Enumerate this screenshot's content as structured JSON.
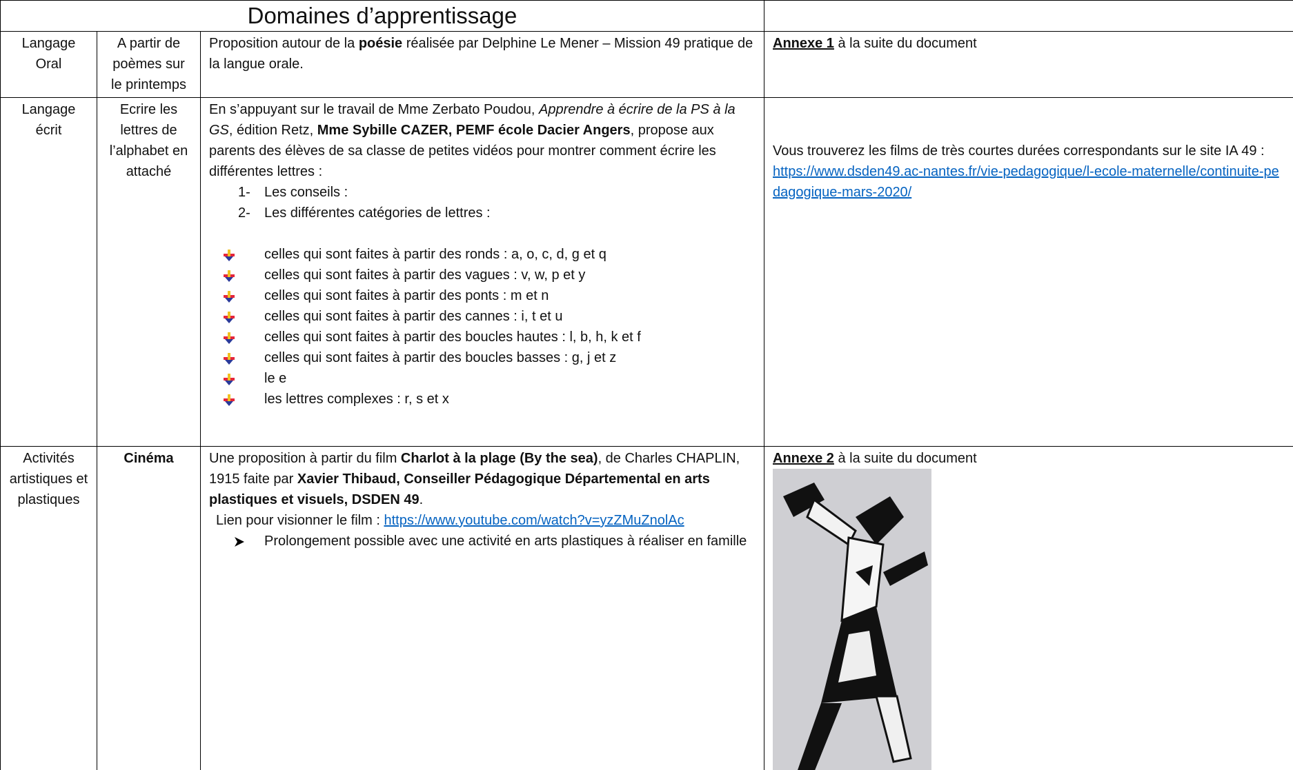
{
  "header": {
    "title": "Domaines d’apprentissage"
  },
  "rows": [
    {
      "domain": "Langage Oral",
      "activity": "A partir de poèmes sur le printemps",
      "description": [
        "Proposition autour de la ",
        "poésie",
        " réalisée par Delphine Le Mener – Mission 49 pratique de la langue orale."
      ],
      "resource": [
        "Annexe 1",
        " à la suite du document"
      ]
    },
    {
      "domain": "Langage écrit",
      "activity": "Ecrire les lettres de l’alphabet en attaché",
      "description": [
        "En s’appuyant sur le travail de Mme Zerbato Poudou, ",
        "Apprendre à écrire de la PS à la GS",
        ", édition Retz, ",
        "Mme Sybille CAZER, PEMF école Dacier Angers",
        ", propose aux parents des élèves de sa classe de petites vidéos pour montrer comment écrire les différentes lettres :"
      ],
      "numbered_list": [
        {
          "number": "1-",
          "text": "Les conseils :"
        },
        {
          "number": "2-",
          "text": "Les différentes catégories de lettres :"
        }
      ],
      "bullets": [
        "celles qui sont faites à partir des ronds : a, o, c, d, g et q",
        "celles qui sont faites à partir des vagues : v, w, p et y",
        "celles qui sont faites à partir des ponts : m et n",
        "celles qui sont faites à partir des cannes : i, t et u",
        "celles qui sont faites à partir des boucles hautes : l, b, h, k et f",
        "celles qui sont faites à partir des boucles basses : g, j et z",
        "le e",
        "les lettres complexes : r, s et x"
      ],
      "resource": [
        "Vous trouverez les films de très courtes durées correspondants sur le site IA 49 :",
        "https://www.dsden49.ac-nantes.fr/vie-pedagogique/l-ecole-maternelle/continuite-pedagogique-mars-2020/"
      ]
    },
    {
      "domain": "Activités artistiques et plastiques",
      "activity": "Cinéma",
      "description": [
        "Une proposition à partir du film ",
        "Charlot à la plage (By the sea)",
        ", de Charles CHAPLIN, 1915 faite par ",
        "Xavier Thibaud, Conseiller Pédagogique Départemental en arts plastiques et visuels, DSDEN 49",
        "."
      ],
      "link_line": [
        "Lien pour visionner le film : ",
        "https://www.youtube.com/watch?v=yzZMuZnolAc"
      ],
      "arrow_item": "Prolongement possible avec une activité en arts plastiques à réaliser en famille",
      "resource": [
        "Annexe 2",
        " à la suite du document"
      ]
    }
  ]
}
